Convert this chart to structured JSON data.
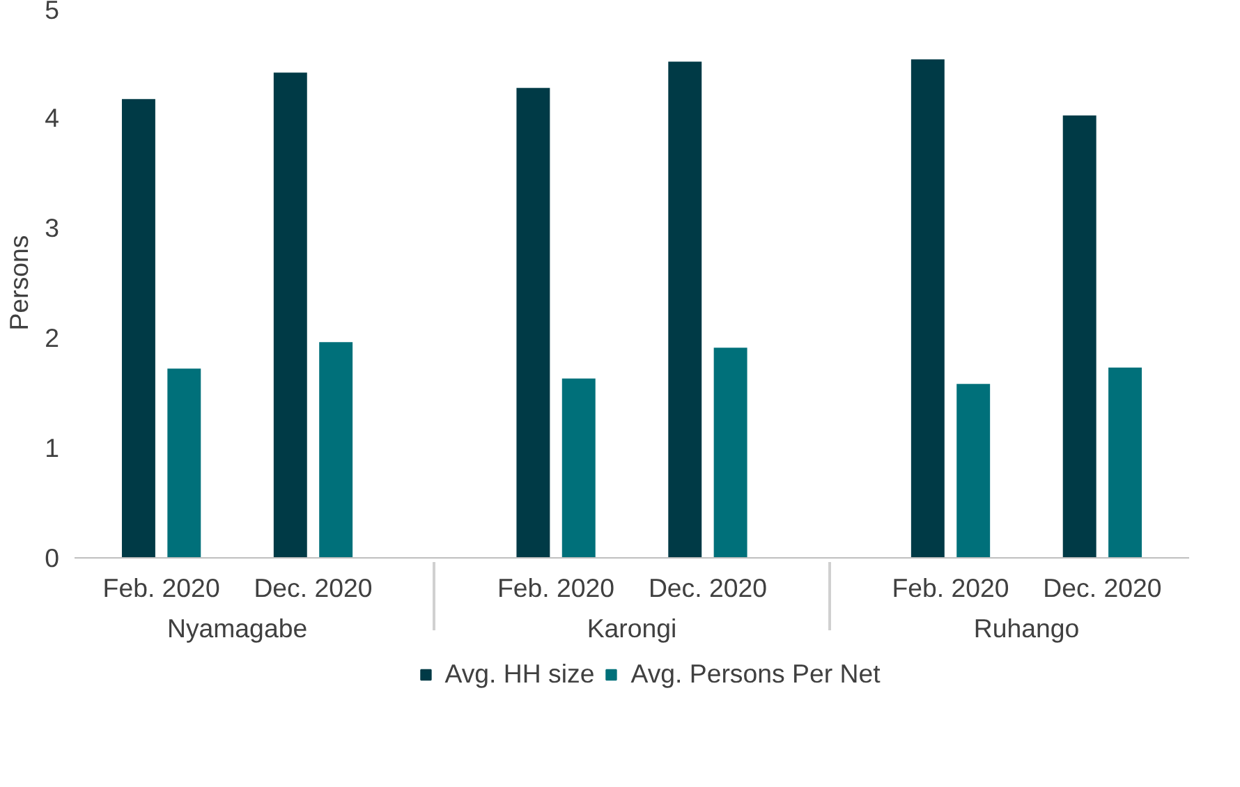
{
  "chart_data": {
    "type": "bar",
    "ylabel": "Persons",
    "categories": [
      [
        "Nyamagabe",
        "Feb. 2020"
      ],
      [
        null,
        "Dec. 2020"
      ],
      [
        "Karongi",
        "Feb. 2020"
      ],
      [
        null,
        "Dec. 2020"
      ],
      [
        "Ruhango",
        "Feb. 2020"
      ],
      [
        null,
        "Dec. 2020"
      ]
    ],
    "series": [
      {
        "name": "Avg. HH size",
        "color": "#003a46",
        "values": [
          4.17,
          4.41,
          4.27,
          4.51,
          4.53,
          4.02
        ]
      },
      {
        "name": "Avg. Persons Per Net",
        "color": "#00707a",
        "values": [
          1.72,
          1.96,
          1.63,
          1.91,
          1.58,
          1.73
        ]
      }
    ],
    "ylim": [
      0,
      5
    ],
    "yticks": [
      0,
      1,
      2,
      3,
      4,
      5
    ],
    "grid": false,
    "legend": "bottom"
  }
}
